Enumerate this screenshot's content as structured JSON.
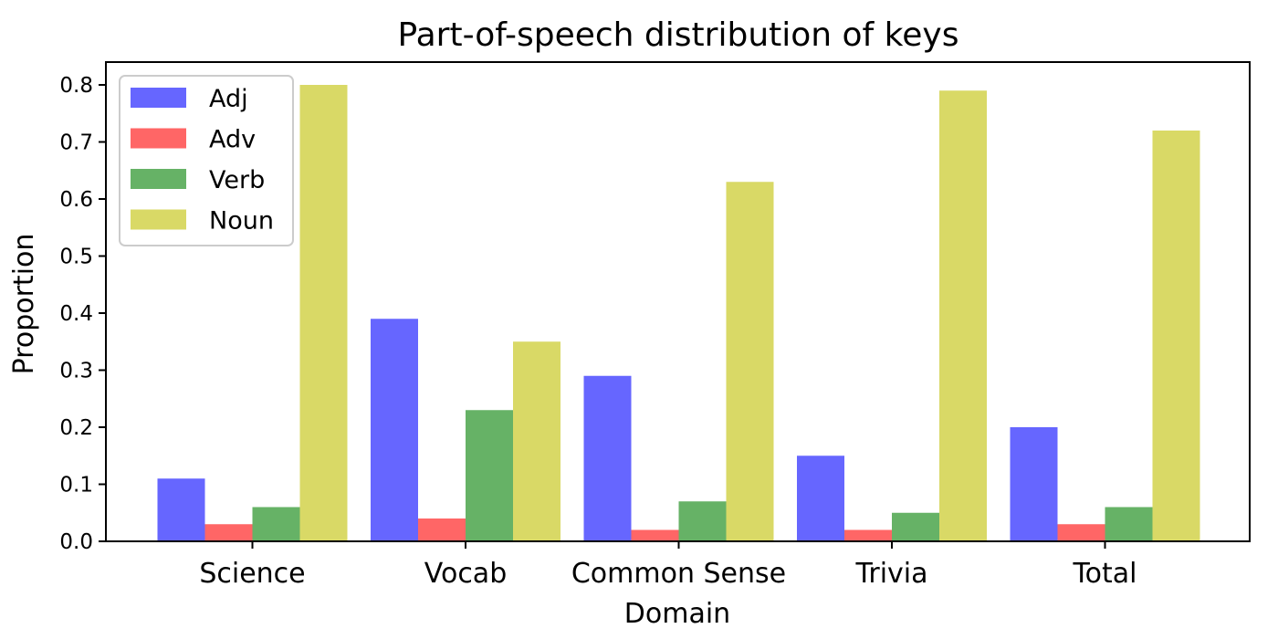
{
  "chart_data": {
    "type": "bar",
    "title": "Part-of-speech distribution of keys",
    "xlabel": "Domain",
    "ylabel": "Proportion",
    "categories": [
      "Science",
      "Vocab",
      "Common Sense",
      "Trivia",
      "Total"
    ],
    "series": [
      {
        "name": "Adj",
        "color": "#6666ff",
        "values": [
          0.11,
          0.39,
          0.29,
          0.15,
          0.2
        ]
      },
      {
        "name": "Adv",
        "color": "#ff6666",
        "values": [
          0.03,
          0.04,
          0.02,
          0.02,
          0.03
        ]
      },
      {
        "name": "Verb",
        "color": "#66b266",
        "values": [
          0.06,
          0.23,
          0.07,
          0.05,
          0.06
        ]
      },
      {
        "name": "Noun",
        "color": "#d9d966",
        "values": [
          0.8,
          0.35,
          0.63,
          0.79,
          0.72
        ]
      }
    ],
    "ylim": [
      0,
      0.84
    ],
    "yticks": [
      "0.0",
      "0.1",
      "0.2",
      "0.3",
      "0.4",
      "0.5",
      "0.6",
      "0.7",
      "0.8"
    ],
    "legend_position": "top-left",
    "grid": false
  }
}
